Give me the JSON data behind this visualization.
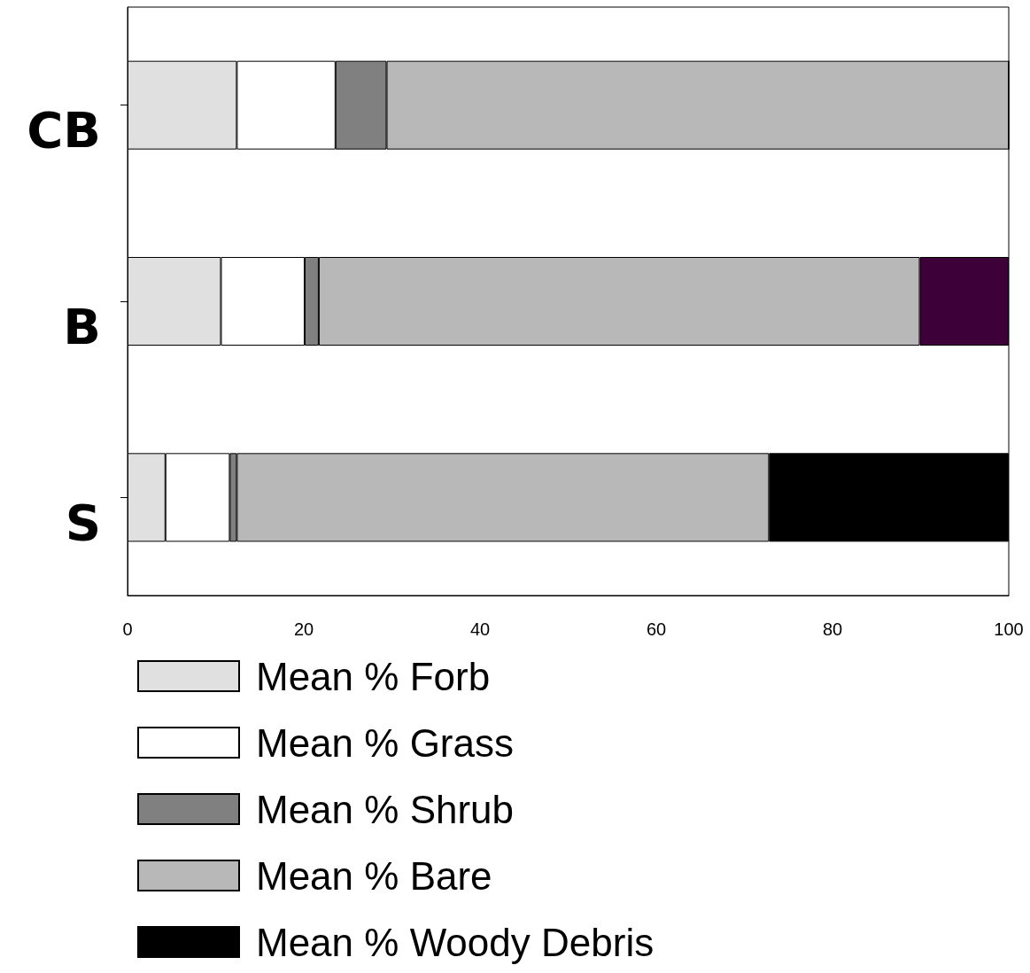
{
  "chart_data": {
    "type": "bar",
    "orientation": "horizontal",
    "stacked": true,
    "categories": [
      "CB",
      "B",
      "S"
    ],
    "series": [
      {
        "name": "Mean % Forb",
        "color": "#e0e0e0",
        "values": [
          12.4,
          10.6,
          4.3
        ]
      },
      {
        "name": "Mean % Grass",
        "color": "#ffffff",
        "values": [
          11.2,
          9.5,
          7.3
        ]
      },
      {
        "name": "Mean % Shrub",
        "color": "#808080",
        "values": [
          5.8,
          1.6,
          0.8
        ]
      },
      {
        "name": "Mean % Bare",
        "color": "#b8b8b8",
        "values": [
          70.6,
          68.2,
          60.4
        ]
      },
      {
        "name": "Mean % Woody Debris",
        "color": "#000000",
        "colors": [
          "#000000",
          "#3d0038",
          "#000000"
        ],
        "values": [
          0,
          10.1,
          27.2
        ]
      }
    ],
    "xlim": [
      0,
      100
    ],
    "xticks": [
      0,
      20,
      40,
      60,
      80,
      100
    ],
    "grid": false,
    "legend": "bottom"
  }
}
